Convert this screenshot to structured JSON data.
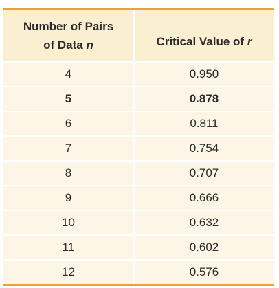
{
  "table": {
    "header": {
      "col1_line1": "Number of Pairs",
      "col1_line2_prefix": "of Data ",
      "col1_line2_var": "n",
      "col2_prefix": "Critical Value of ",
      "col2_var": "r"
    },
    "rows": [
      {
        "n": "4",
        "r": "0.950",
        "highlighted": false
      },
      {
        "n": "5",
        "r": "0.878",
        "highlighted": true
      },
      {
        "n": "6",
        "r": "0.811",
        "highlighted": false
      },
      {
        "n": "7",
        "r": "0.754",
        "highlighted": false
      },
      {
        "n": "8",
        "r": "0.707",
        "highlighted": false
      },
      {
        "n": "9",
        "r": "0.666",
        "highlighted": false
      },
      {
        "n": "10",
        "r": "0.632",
        "highlighted": false
      },
      {
        "n": "11",
        "r": "0.602",
        "highlighted": false
      },
      {
        "n": "12",
        "r": "0.576",
        "highlighted": false
      }
    ]
  },
  "colors": {
    "rule": "#e8a23a",
    "header_bg": "#fbefd2",
    "body_bg": "#fdf6e6",
    "text": "#2b2b2b"
  }
}
